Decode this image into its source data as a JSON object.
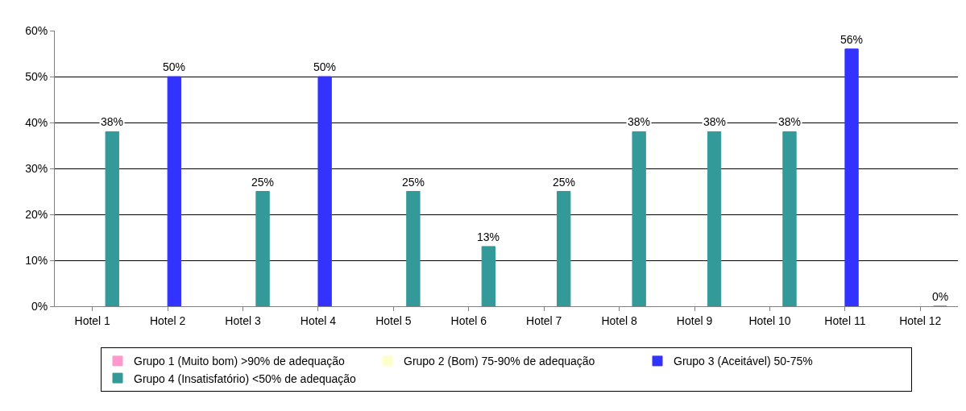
{
  "chart_data": {
    "type": "bar",
    "categories": [
      "Hotel 1",
      "Hotel 2",
      "Hotel 3",
      "Hotel 4",
      "Hotel 5",
      "Hotel 6",
      "Hotel 7",
      "Hotel 8",
      "Hotel 9",
      "Hotel 10",
      "Hotel 11",
      "Hotel 12"
    ],
    "series": [
      {
        "name": "Grupo 1 (Muito bom) >90% de adequação",
        "color": "#ff99cc",
        "values": [
          null,
          null,
          null,
          null,
          null,
          null,
          null,
          null,
          null,
          null,
          null,
          null
        ]
      },
      {
        "name": "Grupo 2 (Bom) 75-90% de adequação",
        "color": "#ffffcc",
        "values": [
          null,
          null,
          null,
          null,
          null,
          null,
          null,
          null,
          null,
          null,
          null,
          null
        ]
      },
      {
        "name": "Grupo 3 (Aceitável) 50-75%",
        "color": "#3333ff",
        "values": [
          null,
          50,
          null,
          50,
          null,
          null,
          null,
          null,
          null,
          null,
          56,
          null
        ],
        "value_labels": [
          null,
          "50%",
          null,
          "50%",
          null,
          null,
          null,
          null,
          null,
          null,
          "56%",
          null
        ]
      },
      {
        "name": "Grupo 4 (Insatisfatório) <50% de adequação",
        "color": "#339999",
        "values": [
          38,
          null,
          25,
          null,
          25,
          13,
          25,
          38,
          38,
          38,
          null,
          0
        ],
        "value_labels": [
          "38%",
          null,
          "25%",
          null,
          "25%",
          "13%",
          "25%",
          "38%",
          "38%",
          "38%",
          null,
          "0%"
        ]
      }
    ],
    "ylim": [
      0,
      60
    ],
    "yticks": [
      {
        "value": 0,
        "label": "0%"
      },
      {
        "value": 10,
        "label": "10%"
      },
      {
        "value": 20,
        "label": "20%"
      },
      {
        "value": 30,
        "label": "30%"
      },
      {
        "value": 40,
        "label": "40%"
      },
      {
        "value": 50,
        "label": "50%"
      },
      {
        "value": 60,
        "label": "60%"
      }
    ],
    "grid": "y",
    "legend": "bottom"
  }
}
